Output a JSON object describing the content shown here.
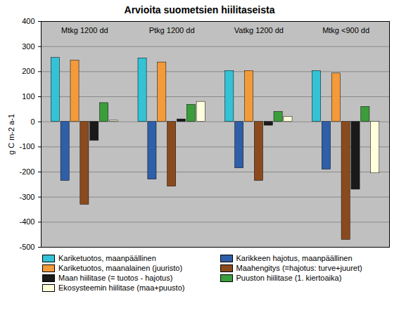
{
  "chart_data": {
    "type": "bar",
    "title": "Arvioita suometsien hiilitaseista",
    "y_label": "g C m-2 a-1",
    "categories": [
      "Mtkg 1200 dd",
      "Ptkg 1200 dd",
      "Vatkg 1200 dd",
      "Mtkg <900 dd"
    ],
    "series": [
      {
        "name": "Kariketuotos, maanpäällinen",
        "color": "#33c2d6",
        "values": [
          255,
          253,
          203,
          203
        ]
      },
      {
        "name": "Karikkeen hajotus, maanpäällinen",
        "color": "#2e5fa8",
        "values": [
          -235,
          -230,
          -185,
          -190
        ]
      },
      {
        "name": "Kariketuotos, maanalainen (juuristo)",
        "color": "#f39a3a",
        "values": [
          245,
          237,
          203,
          193
        ]
      },
      {
        "name": "Maahengitys (=hajotus: turve+juuret)",
        "color": "#8b4a1e",
        "values": [
          -330,
          -258,
          -235,
          -470
        ]
      },
      {
        "name": "Maan hiilitase (= tuotos - hajotus)",
        "color": "#1a1a1a",
        "values": [
          -75,
          10,
          -15,
          -270
        ]
      },
      {
        "name": "Puuston hiilitase (1. kiertoaika)",
        "color": "#3a9e3a",
        "values": [
          75,
          68,
          40,
          60
        ]
      },
      {
        "name": "Ekosysteemin hiilitase (maa+puusto)",
        "color": "#ffffdc",
        "values": [
          5,
          80,
          20,
          -205
        ]
      }
    ],
    "ylim": [
      -500,
      400
    ],
    "yticks": [
      -500,
      -400,
      -300,
      -200,
      -100,
      0,
      100,
      200,
      300,
      400
    ],
    "grid": true,
    "legend": "bottom"
  }
}
